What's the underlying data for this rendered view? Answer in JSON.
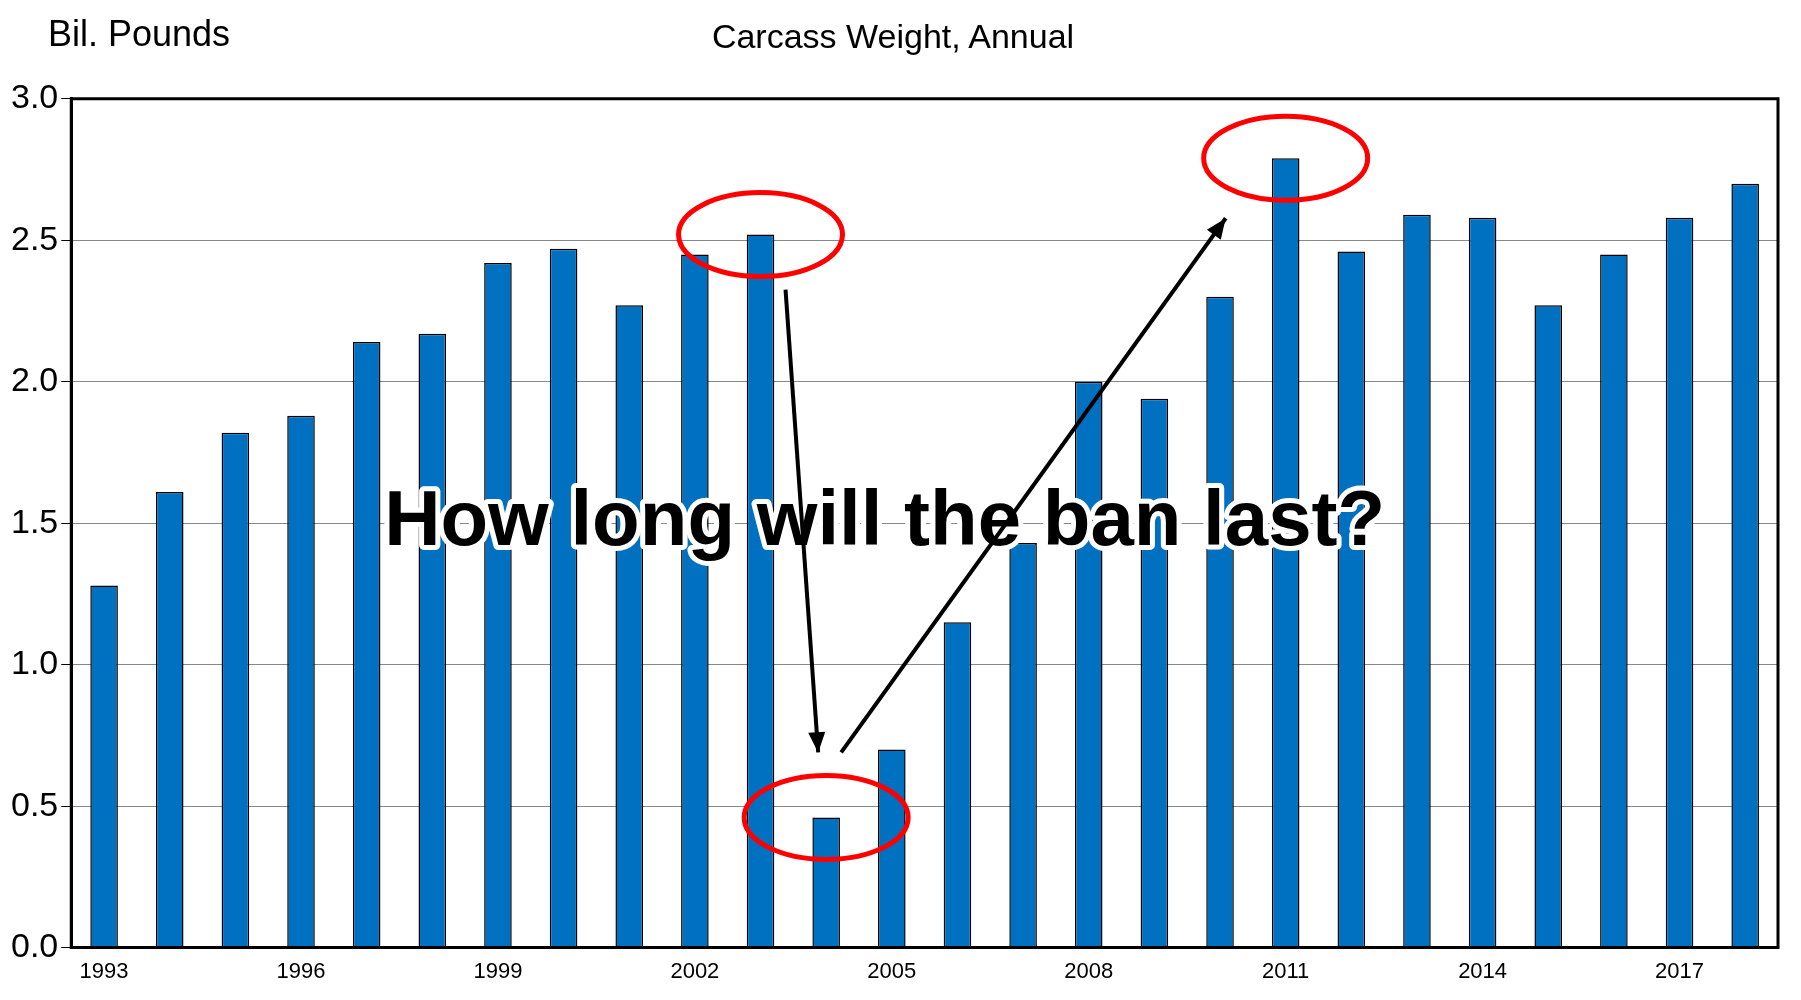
{
  "chart_data": {
    "type": "bar",
    "title": "Carcass Weight, Annual",
    "ylabel": "Bil. Pounds",
    "categories": [
      "1993",
      null,
      null,
      "1996",
      null,
      null,
      "1999",
      null,
      null,
      "2002",
      null,
      null,
      "2005",
      null,
      null,
      "2008",
      null,
      null,
      "2011",
      null,
      null,
      "2014",
      null,
      null,
      "2017",
      null
    ],
    "series": [
      {
        "color": "#0070c0",
        "values": [
          1.28,
          1.61,
          1.82,
          1.88,
          2.14,
          2.17,
          2.42,
          2.47,
          2.27,
          2.45,
          2.52,
          0.46,
          0.7,
          1.15,
          1.43,
          2.0,
          1.94,
          2.3,
          2.79,
          2.46,
          2.59,
          2.58,
          2.27,
          2.45,
          2.58,
          2.7
        ]
      }
    ],
    "ylim": [
      0,
      3
    ],
    "yticks": [
      {
        "value": 0,
        "label": "0.0"
      },
      {
        "value": 0.5,
        "label": "0.5"
      },
      {
        "value": 1,
        "label": "1.0"
      },
      {
        "value": 1.5,
        "label": "1.5"
      },
      {
        "value": 2,
        "label": "2.0"
      },
      {
        "value": 2.5,
        "label": "2.5"
      },
      {
        "value": 3,
        "label": "3.0"
      }
    ],
    "grid": "y",
    "legend": false,
    "annotations": [
      "How long will the ban last?"
    ]
  }
}
